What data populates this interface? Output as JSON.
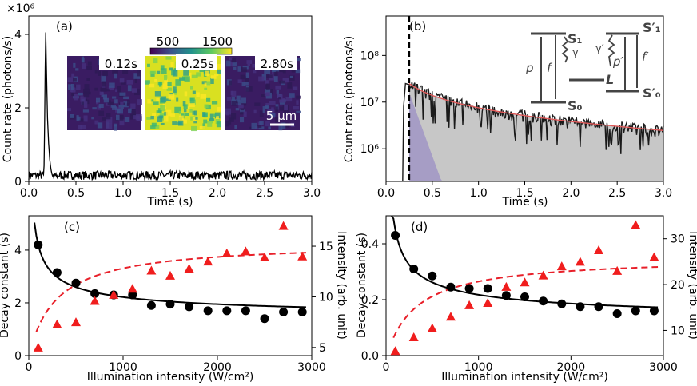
{
  "chart_data": [
    {
      "panel": "(a)",
      "type": "line",
      "xlabel": "Time (s)",
      "ylabel": "Count rate (photons/s)",
      "yexp": "×10⁶",
      "xlim": [
        0,
        3.0
      ],
      "ylim": [
        0,
        4.5
      ],
      "xticks": [
        "0.0",
        "0.5",
        "1.0",
        "1.5",
        "2.0",
        "2.5",
        "3.0"
      ],
      "yticks": [
        "0",
        "2",
        "4"
      ],
      "series": [
        {
          "peak_t": 0.18,
          "peak_y": 4.3,
          "baseline": 0.15
        }
      ],
      "inset": {
        "colorbar_ticks": [
          "500",
          "1500"
        ],
        "images": [
          "0.12s",
          "0.25s",
          "2.80s"
        ],
        "scalebar": "5 μm"
      }
    },
    {
      "panel": "(b)",
      "type": "line",
      "scale": "log",
      "xlabel": "Time (s)",
      "ylabel": "Count rate (photons/s)",
      "xlim": [
        0,
        3.0
      ],
      "ylim": [
        200000,
        700000000
      ],
      "xticks": [
        "0.0",
        "0.5",
        "1.0",
        "1.5",
        "2.0",
        "2.5",
        "3.0"
      ],
      "yticks": [
        "10⁶",
        "10⁷",
        "10⁸"
      ],
      "series": [
        {
          "t": [
            0.25,
            0.5,
            0.75,
            1.0,
            1.25,
            1.5,
            1.75,
            2.0,
            2.25,
            2.5,
            2.75,
            3.0
          ],
          "y": [
            25000000,
            12000000,
            8500000,
            6200000,
            4600000,
            3500000,
            2700000,
            2100000,
            1650000,
            1300000,
            1050000,
            850000
          ]
        }
      ],
      "dashed_line_t": 0.25,
      "diagram": {
        "states": [
          "S₁",
          "L",
          "S₀",
          "S′₁",
          "S′₀"
        ],
        "rates": [
          "p",
          "f",
          "γ",
          "γ′",
          "p′",
          "f′"
        ]
      }
    },
    {
      "panel": "(c)",
      "type": "scatter",
      "xlabel": "Illumination intensity (W/cm²)",
      "ylabel": "Decay constant (s)",
      "y2label": "Intensity (arb. unit)",
      "xlim": [
        0,
        3000
      ],
      "ylim": [
        0,
        5.3
      ],
      "y2lim": [
        4.2,
        18
      ],
      "xticks": [
        "0",
        "1000",
        "2000",
        "3000"
      ],
      "yticks": [
        "0",
        "2",
        "4"
      ],
      "y2ticks": [
        "5",
        "10",
        "15"
      ],
      "x": [
        100,
        300,
        500,
        700,
        900,
        1100,
        1300,
        1500,
        1700,
        1900,
        2100,
        2300,
        2500,
        2700,
        2900
      ],
      "decay": [
        4.2,
        3.15,
        2.75,
        2.35,
        2.3,
        2.3,
        1.9,
        1.95,
        1.85,
        1.7,
        1.7,
        1.7,
        1.4,
        1.65,
        1.65
      ],
      "intensity": [
        5.0,
        7.3,
        7.5,
        9.6,
        10.2,
        10.8,
        12.6,
        12.1,
        12.8,
        13.5,
        14.3,
        14.5,
        13.9,
        17.0,
        14.0
      ]
    },
    {
      "panel": "(d)",
      "type": "scatter",
      "xlabel": "Illumination intensity (W/cm²)",
      "ylabel": "Decay constant (s)",
      "y2label": "Intensity (arb. unit)",
      "xlim": [
        0,
        3000
      ],
      "ylim": [
        0,
        0.5
      ],
      "y2lim": [
        4.5,
        35
      ],
      "xticks": [
        "0",
        "1000",
        "2000",
        "3000"
      ],
      "yticks": [
        "0.0",
        "0.2",
        "0.4"
      ],
      "y2ticks": [
        "10",
        "20",
        "30"
      ],
      "x": [
        100,
        300,
        500,
        700,
        900,
        1100,
        1300,
        1500,
        1700,
        1900,
        2100,
        2300,
        2500,
        2700,
        2900
      ],
      "decay": [
        0.43,
        0.31,
        0.285,
        0.245,
        0.24,
        0.24,
        0.215,
        0.21,
        0.195,
        0.185,
        0.175,
        0.175,
        0.15,
        0.16,
        0.16
      ],
      "intensity": [
        5.5,
        8.5,
        10.5,
        13,
        15.5,
        16,
        19.5,
        20.5,
        22,
        24,
        25,
        27.5,
        23,
        33,
        26
      ]
    }
  ]
}
